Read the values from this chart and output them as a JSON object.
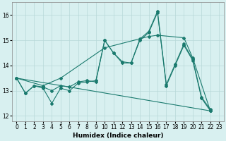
{
  "xlabel": "Humidex (Indice chaleur)",
  "bg_color": "#d8f0f0",
  "line_color": "#1a7a6e",
  "grid_color": "#b8d8d8",
  "xlim": [
    -0.5,
    23.5
  ],
  "ylim": [
    11.8,
    16.5
  ],
  "yticks": [
    12,
    13,
    14,
    15,
    16
  ],
  "xticks": [
    0,
    1,
    2,
    3,
    4,
    5,
    6,
    7,
    8,
    9,
    10,
    11,
    12,
    13,
    14,
    15,
    16,
    17,
    18,
    19,
    20,
    21,
    22,
    23
  ],
  "series": [
    {
      "x": [
        0,
        1,
        2,
        3,
        4,
        5,
        6,
        7,
        8,
        9,
        10,
        11,
        12,
        13,
        14,
        15,
        16,
        17,
        18,
        19,
        20,
        21,
        22
      ],
      "y": [
        13.5,
        12.9,
        13.2,
        13.1,
        12.5,
        13.1,
        13.0,
        13.3,
        13.35,
        13.4,
        15.0,
        14.5,
        14.1,
        14.1,
        15.0,
        15.3,
        16.1,
        13.2,
        14.0,
        14.8,
        14.2,
        12.7,
        12.2
      ]
    },
    {
      "x": [
        0,
        1,
        2,
        3,
        4,
        5,
        6,
        7,
        8,
        9,
        10,
        11,
        12,
        13,
        14,
        15,
        16,
        17,
        18,
        19,
        20,
        21,
        22
      ],
      "y": [
        13.5,
        12.9,
        13.2,
        13.15,
        13.0,
        13.2,
        13.15,
        13.35,
        13.4,
        13.35,
        15.0,
        14.5,
        14.15,
        14.1,
        15.05,
        15.35,
        16.15,
        13.25,
        14.05,
        14.85,
        14.25,
        12.75,
        12.25
      ]
    },
    {
      "x": [
        0,
        22
      ],
      "y": [
        13.5,
        12.2
      ]
    },
    {
      "x": [
        0,
        3,
        5,
        10,
        15,
        16,
        19,
        20,
        22
      ],
      "y": [
        13.5,
        13.2,
        13.5,
        14.7,
        15.15,
        15.2,
        15.1,
        14.3,
        12.2
      ]
    }
  ]
}
